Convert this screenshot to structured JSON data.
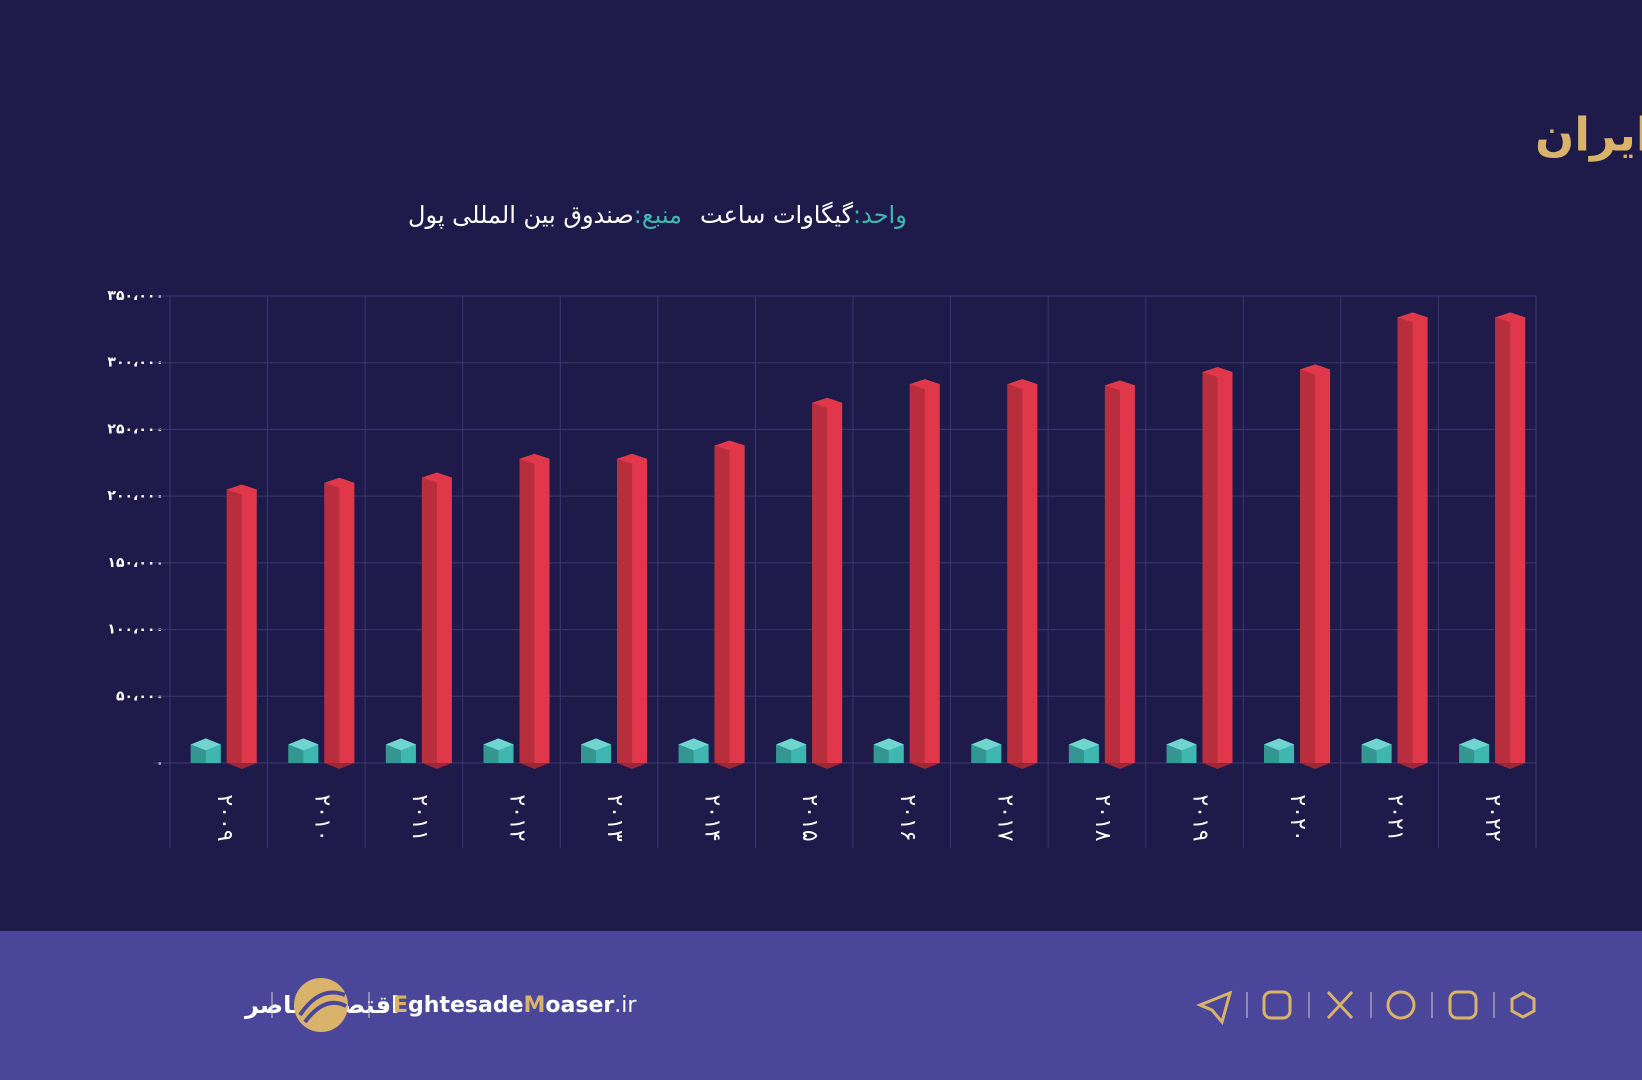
{
  "title": "برق تولید شده از منابع انرژی تجدید پذیر و تجدید ناپذیر در ایران",
  "unit_label": "واحد:",
  "unit": "گیگاوات ساعت",
  "source_label": "منبع:",
  "source": "صندوق بین المللی پول",
  "chart_data": {
    "type": "bar",
    "categories": [
      "۲۰۰۹",
      "۲۰۱۰",
      "۲۰۱۱",
      "۲۰۱۲",
      "۲۰۱۳",
      "۲۰۱۴",
      "۲۰۱۵",
      "۲۰۱۶",
      "۲۰۱۷",
      "۲۰۱۸",
      "۲۰۱۹",
      "۲۰۲۰",
      "۲۰۲۱",
      "۲۰۲۲"
    ],
    "series": [
      {
        "color": "#3fb7b0",
        "values": [
          5000,
          5000,
          5000,
          5000,
          5000,
          5000,
          5000,
          5000,
          5000,
          5000,
          5000,
          5000,
          5000,
          5000
        ]
      },
      {
        "color": "#e0384a",
        "values": [
          205000,
          210000,
          214000,
          228000,
          228000,
          238000,
          270000,
          284000,
          284000,
          283000,
          293000,
          295000,
          334000,
          334000
        ]
      }
    ],
    "ylim": [
      0,
      350000
    ],
    "yticks": [
      {
        "value": 0,
        "label": "۰"
      },
      {
        "value": 50000,
        "label": "۵۰،۰۰۰"
      },
      {
        "value": 100000,
        "label": "۱۰۰،۰۰۰"
      },
      {
        "value": 150000,
        "label": "۱۵۰،۰۰۰"
      },
      {
        "value": 200000,
        "label": "۲۰۰،۰۰۰"
      },
      {
        "value": 250000,
        "label": "۲۵۰،۰۰۰"
      },
      {
        "value": 300000,
        "label": "۳۰۰،۰۰۰"
      },
      {
        "value": 350000,
        "label": "۳۵۰،۰۰۰"
      }
    ],
    "grid": true
  },
  "footer": {
    "brand": "اقتصادمعاصر",
    "site_parts": [
      "E",
      "ghtesade",
      "M",
      "oaser",
      ".ir"
    ]
  }
}
